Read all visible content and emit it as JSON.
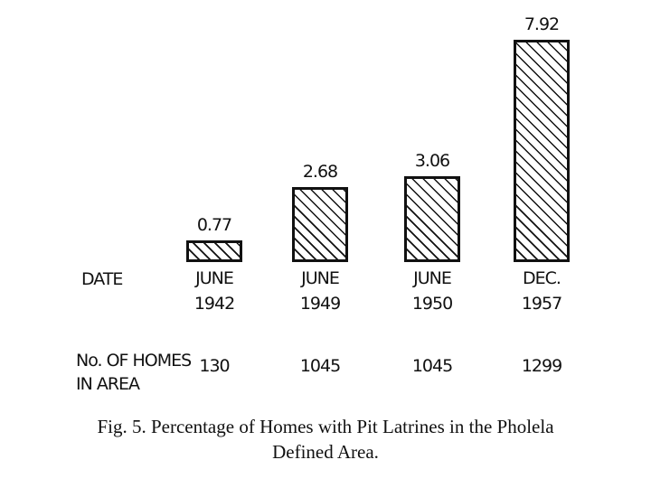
{
  "chart_data": {
    "type": "bar",
    "title": "Fig. 5. Percentage of Homes with Pit Latrines in the Pholela Defined Area.",
    "date_label": "DATE",
    "categories": [
      "JUNE 1942",
      "JUNE 1949",
      "JUNE 1950",
      "DEC. 1957"
    ],
    "values": [
      0.77,
      2.68,
      3.06,
      7.92
    ],
    "homes_in_area": {
      "label": "No. OF HOMES IN AREA",
      "values": [
        130,
        1045,
        1045,
        1299
      ]
    }
  }
}
